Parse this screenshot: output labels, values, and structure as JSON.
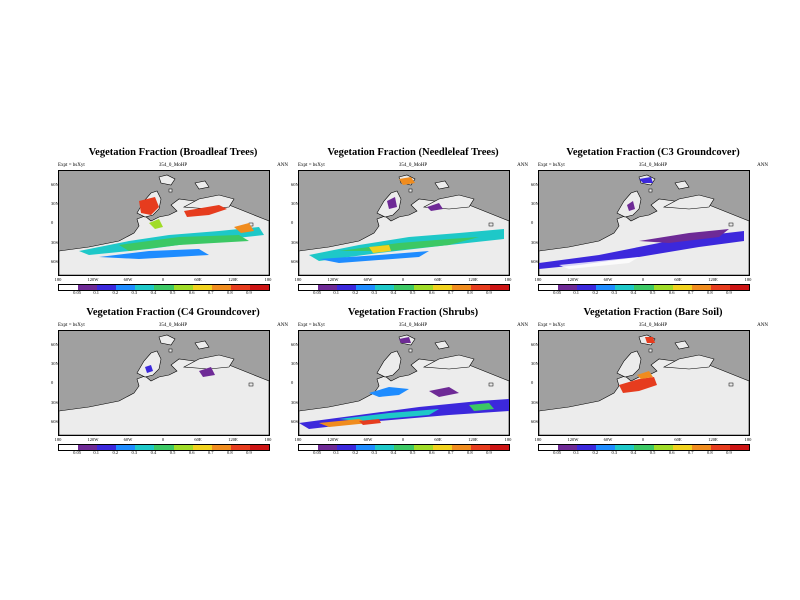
{
  "colorbar": {
    "ticks": [
      "0.05",
      "0.1",
      "0.2",
      "0.3",
      "0.4",
      "0.5",
      "0.6",
      "0.7",
      "0.8",
      "0.9"
    ],
    "colors": [
      "#ffffff",
      "#6e2a96",
      "#3c28dc",
      "#1e8cff",
      "#1ec8c8",
      "#3cc864",
      "#a0dc28",
      "#f0d21e",
      "#f08c1e",
      "#e63c1e",
      "#cc1414"
    ]
  },
  "panels": [
    {
      "title": "Vegetation Fraction (Broadleaf Trees)",
      "sub_left": "Expt = bsXyt",
      "sub_center": "354_0_MoHP",
      "sub_right": "ANN",
      "y_ticks": [
        "60N",
        "30N",
        "0",
        "30S",
        "60S"
      ],
      "x_ticks": [
        "180",
        "120W",
        "60W",
        "0",
        "60E",
        "120E",
        "180"
      ]
    },
    {
      "title": "Vegetation Fraction (Needleleaf Trees)",
      "sub_left": "Expt = bsXyt",
      "sub_center": "354_0_MoHP",
      "sub_right": "ANN",
      "y_ticks": [
        "60N",
        "30N",
        "0",
        "30S",
        "60S"
      ],
      "x_ticks": [
        "180",
        "120W",
        "60W",
        "0",
        "60E",
        "120E",
        "180"
      ]
    },
    {
      "title": "Vegetation Fraction (C3 Groundcover)",
      "sub_left": "Expt = bsXyt",
      "sub_center": "354_0_MoHP",
      "sub_right": "ANN",
      "y_ticks": [
        "60N",
        "30N",
        "0",
        "30S",
        "60S"
      ],
      "x_ticks": [
        "180",
        "120W",
        "60W",
        "0",
        "60E",
        "120E",
        "180"
      ]
    },
    {
      "title": "Vegetation Fraction (C4 Groundcover)",
      "sub_left": "Expt = bsXyt",
      "sub_center": "354_0_MoHP",
      "sub_right": "ANN",
      "y_ticks": [
        "60N",
        "30N",
        "0",
        "30S",
        "60S"
      ],
      "x_ticks": [
        "180",
        "120W",
        "60W",
        "0",
        "60E",
        "120E",
        "180"
      ]
    },
    {
      "title": "Vegetation Fraction (Shrubs)",
      "sub_left": "Expt = bsXyt",
      "sub_center": "354_0_MoHP",
      "sub_right": "ANN",
      "y_ticks": [
        "60N",
        "30N",
        "0",
        "30S",
        "60S"
      ],
      "x_ticks": [
        "180",
        "120W",
        "60W",
        "0",
        "60E",
        "120E",
        "180"
      ]
    },
    {
      "title": "Vegetation Fraction (Bare Soil)",
      "sub_left": "Expt = bsXyt",
      "sub_center": "354_0_MoHP",
      "sub_right": "ANN",
      "y_ticks": [
        "60N",
        "30N",
        "0",
        "30S",
        "60S"
      ],
      "x_ticks": [
        "180",
        "120W",
        "60W",
        "0",
        "60E",
        "120E",
        "180"
      ]
    }
  ],
  "chart_data": {
    "type": "heatmap",
    "variable": "Vegetation Fraction",
    "categories": [
      "Broadleaf Trees",
      "Needleleaf Trees",
      "C3 Groundcover",
      "C4 Groundcover",
      "Shrubs",
      "Bare Soil"
    ],
    "color_levels": [
      0.05,
      0.1,
      0.2,
      0.3,
      0.4,
      0.5,
      0.6,
      0.7,
      0.8,
      0.9
    ],
    "xlim": [
      -180,
      180
    ],
    "ylim": [
      -90,
      90
    ],
    "ocean_color": "#a0a0a0",
    "land_low_color": "#eeeeee"
  }
}
